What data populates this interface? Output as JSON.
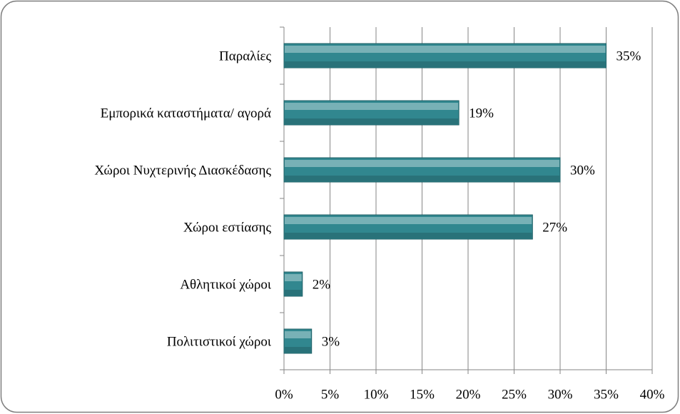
{
  "chart_data": {
    "type": "bar",
    "orientation": "horizontal",
    "categories": [
      "Παραλίες",
      "Εμπορικά καταστήματα/ αγορά",
      "Χώροι Νυχτερινής Διασκέδασης",
      "Χώροι εστίασης",
      "Αθλητικοί χώροι",
      "Πολιτιστικοί χώροι"
    ],
    "values": [
      35,
      19,
      30,
      27,
      2,
      3
    ],
    "value_labels": [
      "35%",
      "19%",
      "30%",
      "27%",
      "2%",
      "3%"
    ],
    "color": "#31878f",
    "xlim": [
      0,
      40
    ],
    "xticks": [
      {
        "value": 0,
        "label": "0%"
      },
      {
        "value": 5,
        "label": "5%"
      },
      {
        "value": 10,
        "label": "10%"
      },
      {
        "value": 15,
        "label": "15%"
      },
      {
        "value": 20,
        "label": "20%"
      },
      {
        "value": 25,
        "label": "25%"
      },
      {
        "value": 30,
        "label": "30%"
      },
      {
        "value": 35,
        "label": "35%"
      },
      {
        "value": 40,
        "label": "40%"
      }
    ],
    "grid": true
  }
}
